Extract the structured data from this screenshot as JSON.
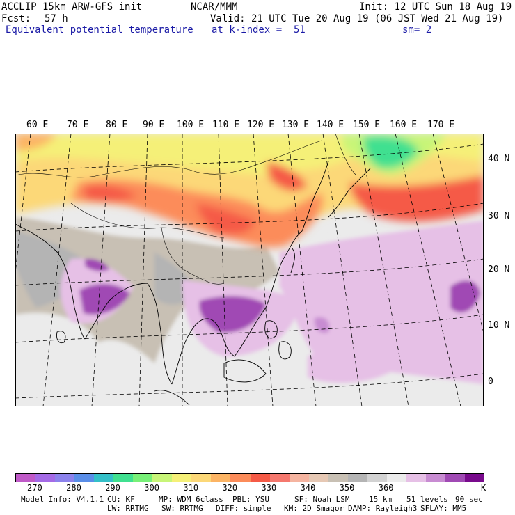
{
  "header": {
    "model": "ACCLIP 15km ARW-GFS init",
    "org": "NCAR/MMM",
    "init": "Init: 12 UTC Sun 18 Aug 19",
    "fcst_label": "Fcst:",
    "fcst_value": "57 h",
    "valid": "Valid: 21 UTC Tue 20 Aug 19 (06 JST Wed 21 Aug 19)",
    "field": "Equivalent potential temperature",
    "level": "at k-index =  51",
    "smooth": "sm= 2"
  },
  "map": {
    "lon_labels": [
      "60 E",
      "70 E",
      "80 E",
      "90 E",
      "100 E",
      "110 E",
      "120 E",
      "130 E",
      "140 E",
      "150 E",
      "160 E",
      "170 E"
    ],
    "lat_labels": [
      "40 N",
      "30 N",
      "20 N",
      "10 N",
      "0"
    ]
  },
  "colorbar": {
    "colors": [
      "#c05ac8",
      "#a46ae6",
      "#8c82ec",
      "#5a8ee8",
      "#34c0c8",
      "#40e090",
      "#78f078",
      "#c8f578",
      "#f5f078",
      "#fcd878",
      "#fcb464",
      "#fc8c5a",
      "#f55a46",
      "#f5786e",
      "#f5b4a0",
      "#e6c8b4",
      "#c8c0b4",
      "#b4b4b4",
      "#d2d2d2",
      "#ebebeb",
      "#e6c0e6",
      "#c88cd2",
      "#a04ab4",
      "#780a8c"
    ],
    "labels": [
      "270",
      "280",
      "290",
      "300",
      "310",
      "320",
      "330",
      "340",
      "350",
      "360"
    ],
    "unit": "K"
  },
  "footer": {
    "line1": [
      "Model Info: V4.1.1",
      "CU: KF",
      "MP: WDM 6class",
      "PBL: YSU",
      "SF: Noah LSM",
      "15 km",
      "51 levels",
      "90 sec"
    ],
    "line2": [
      "LW: RRTMG",
      "SW: RRTMG",
      "DIFF: simple",
      "KM: 2D Smagor",
      "DAMP: Rayleigh3",
      "SFLAY: MM5"
    ]
  }
}
